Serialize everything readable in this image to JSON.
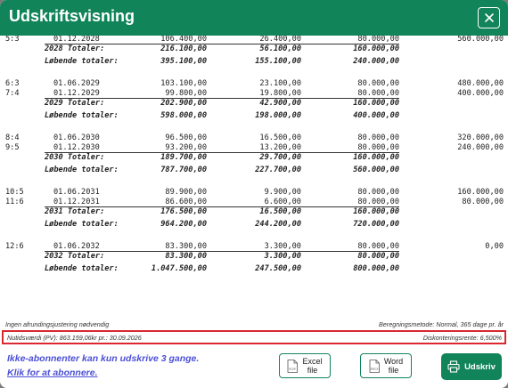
{
  "dialog": {
    "title": "Udskriftsvisning"
  },
  "rows": [
    {
      "kind": "data",
      "period": "5:3",
      "date": "01.12.2028",
      "a": "106.400,00",
      "b": "26.400,00",
      "c": "80.000,00",
      "d": "560.000,00"
    },
    {
      "kind": "total",
      "label": "2028 Totaler:",
      "a": "216.100,00",
      "b": "56.100,00",
      "c": "160.000,00"
    },
    {
      "kind": "running",
      "label": "Løbende totaler:",
      "a": "395.100,00",
      "b": "155.100,00",
      "c": "240.000,00"
    },
    {
      "kind": "data",
      "period": "6:3",
      "date": "01.06.2029",
      "a": "103.100,00",
      "b": "23.100,00",
      "c": "80.000,00",
      "d": "480.000,00"
    },
    {
      "kind": "data",
      "period": "7:4",
      "date": "01.12.2029",
      "a": "99.800,00",
      "b": "19.800,00",
      "c": "80.000,00",
      "d": "400.000,00"
    },
    {
      "kind": "total",
      "label": "2029 Totaler:",
      "a": "202.900,00",
      "b": "42.900,00",
      "c": "160.000,00"
    },
    {
      "kind": "running",
      "label": "Løbende totaler:",
      "a": "598.000,00",
      "b": "198.000,00",
      "c": "400.000,00"
    },
    {
      "kind": "data",
      "period": "8:4",
      "date": "01.06.2030",
      "a": "96.500,00",
      "b": "16.500,00",
      "c": "80.000,00",
      "d": "320.000,00"
    },
    {
      "kind": "data",
      "period": "9:5",
      "date": "01.12.2030",
      "a": "93.200,00",
      "b": "13.200,00",
      "c": "80.000,00",
      "d": "240.000,00"
    },
    {
      "kind": "total",
      "label": "2030 Totaler:",
      "a": "189.700,00",
      "b": "29.700,00",
      "c": "160.000,00"
    },
    {
      "kind": "running",
      "label": "Løbende totaler:",
      "a": "787.700,00",
      "b": "227.700,00",
      "c": "560.000,00"
    },
    {
      "kind": "data",
      "period": "10:5",
      "date": "01.06.2031",
      "a": "89.900,00",
      "b": "9.900,00",
      "c": "80.000,00",
      "d": "160.000,00"
    },
    {
      "kind": "data",
      "period": "11:6",
      "date": "01.12.2031",
      "a": "86.600,00",
      "b": "6.600,00",
      "c": "80.000,00",
      "d": "80.000,00"
    },
    {
      "kind": "total",
      "label": "2031 Totaler:",
      "a": "176.500,00",
      "b": "16.500,00",
      "c": "160.000,00"
    },
    {
      "kind": "running",
      "label": "Løbende totaler:",
      "a": "964.200,00",
      "b": "244.200,00",
      "c": "720.000,00"
    },
    {
      "kind": "data",
      "period": "12:6",
      "date": "01.06.2032",
      "a": "83.300,00",
      "b": "3.300,00",
      "c": "80.000,00",
      "d": "0,00"
    },
    {
      "kind": "total",
      "label": "2032 Totaler:",
      "a": "83.300,00",
      "b": "3.300,00",
      "c": "80.000,00"
    },
    {
      "kind": "running",
      "label": "Løbende totaler:",
      "a": "1.047.500,00",
      "b": "247.500,00",
      "c": "800.000,00"
    }
  ],
  "footer": {
    "rounding_note": "Ingen afrundingsjustering nødvendig",
    "calc_method": "Beregningsmetode: Normal, 365 dage pr. år",
    "present_value": "Nutidsværdi (PV): 863.159,06kr pr.: 30.09.2026",
    "discount_rate": "Diskonteringsrente: 6,500%"
  },
  "actions": {
    "notice": "Ikke-abonnenter kan kun udskrive 3 gange.",
    "subscribe_link": "Klik for at abonnere.",
    "excel_label_1": "Excel",
    "excel_label_2": "file",
    "excel_tag": "XLSX",
    "word_label_1": "Word",
    "word_label_2": "file",
    "word_tag": "DOCX",
    "print_label": "Udskriv"
  },
  "colors": {
    "brand": "#12845a",
    "highlight": "#d9282f",
    "link": "#4b4fd6"
  },
  "icons": {
    "close": "close-icon",
    "excel": "excel-file-icon",
    "word": "word-file-icon",
    "print": "printer-icon"
  }
}
